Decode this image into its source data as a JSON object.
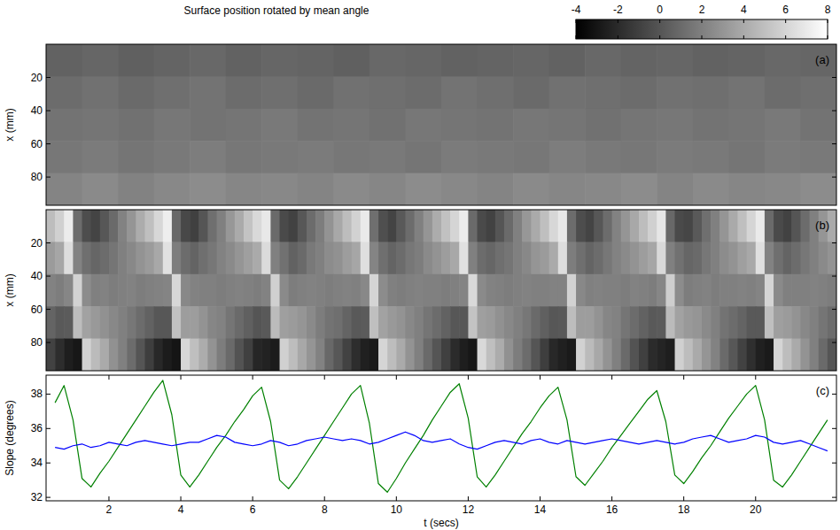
{
  "chart_data": [
    {
      "type": "heatmap",
      "title": "Surface position rotated by mean angle",
      "color_range": [
        -4,
        8
      ],
      "color_ticks": [
        -4,
        -2,
        0,
        2,
        4,
        6,
        8
      ],
      "annotation": "(a)",
      "y_label": "x (mm)",
      "xlim": [
        0.25,
        22.25
      ],
      "ylim": [
        0,
        97
      ],
      "yticks": [
        20,
        40,
        60,
        80
      ],
      "tick_labels": "y",
      "cells": [
        [
          0.6,
          0.8,
          0.5,
          0.7,
          0.9,
          0.6,
          0.8,
          0.7,
          0.5,
          0.9,
          0.8,
          0.6,
          0.7,
          0.8,
          0.6,
          0.9,
          0.7,
          0.8,
          0.6,
          0.7,
          0.9,
          0.8
        ],
        [
          1.1,
          1.3,
          1.0,
          1.2,
          1.4,
          1.1,
          1.2,
          1.0,
          1.3,
          1.2,
          1.1,
          1.4,
          1.2,
          1.0,
          1.3,
          1.2,
          1.1,
          1.3,
          1.2,
          1.4,
          1.1,
          1.2
        ],
        [
          1.4,
          1.5,
          1.3,
          1.6,
          1.4,
          1.5,
          1.7,
          1.4,
          1.5,
          1.3,
          1.6,
          1.5,
          1.4,
          1.6,
          1.5,
          1.3,
          1.5,
          1.6,
          1.4,
          1.5,
          1.7,
          1.4
        ],
        [
          1.6,
          1.8,
          1.5,
          1.7,
          1.9,
          1.6,
          1.7,
          1.8,
          1.6,
          1.7,
          1.5,
          1.8,
          1.7,
          1.6,
          1.9,
          1.7,
          1.6,
          1.8,
          1.7,
          1.5,
          1.8,
          1.7
        ],
        [
          2.2,
          2.5,
          2.1,
          2.4,
          2.6,
          2.3,
          2.4,
          2.2,
          2.5,
          2.3,
          2.6,
          2.4,
          2.2,
          2.5,
          2.3,
          2.4,
          2.6,
          2.2,
          2.5,
          2.3,
          2.4,
          2.6
        ]
      ]
    },
    {
      "type": "heatmap",
      "annotation": "(b)",
      "y_label": "x (mm)",
      "xlim": [
        0.25,
        22.25
      ],
      "ylim": [
        0,
        97
      ],
      "yticks": [
        20,
        40,
        60,
        80
      ],
      "tick_labels": "y",
      "cells": [
        [
          4.9,
          5.8,
          7.1,
          1.1,
          -0.4,
          -0.8,
          0.1,
          1.0,
          2.1,
          3.0,
          4.1,
          5.0,
          6.1,
          7.2,
          0.9,
          -0.6,
          -1.0,
          0.0,
          1.2,
          2.0,
          3.1,
          4.0,
          5.2,
          6.2,
          6.9,
          1.0,
          -0.5,
          -0.9,
          0.1,
          1.1,
          1.9,
          2.9,
          3.9,
          4.9,
          5.9,
          7.0,
          1.2,
          -0.3,
          -0.8,
          0.2,
          1.1,
          2.0,
          3.0,
          4.1,
          5.1,
          6.0,
          7.1,
          1.0,
          -0.5,
          -0.9,
          0.0,
          1.0,
          2.0,
          3.1,
          4.0,
          5.0,
          6.1,
          6.9,
          1.1,
          -0.4,
          -0.8,
          0.1,
          1.1,
          2.1,
          3.0,
          3.9,
          4.9,
          5.8,
          6.8,
          0.9,
          -0.5,
          -0.7,
          0.2,
          1.2,
          2.0,
          3.0,
          4.0,
          5.0,
          6.0,
          7.0,
          1.0,
          -0.5,
          -0.9,
          0.0,
          1.1,
          2.0,
          3.0,
          4.0
        ],
        [
          3.3,
          3.8,
          6.4,
          2.1,
          1.2,
          0.8,
          1.1,
          1.5,
          2.0,
          2.4,
          2.9,
          3.3,
          3.9,
          6.6,
          1.9,
          1.1,
          0.7,
          1.2,
          1.6,
          2.1,
          2.5,
          3.0,
          3.5,
          4.0,
          6.3,
          2.0,
          1.3,
          0.6,
          1.0,
          1.7,
          2.0,
          2.6,
          2.8,
          3.4,
          3.8,
          6.5,
          2.2,
          1.2,
          0.7,
          1.1,
          1.6,
          1.9,
          2.5,
          2.9,
          3.4,
          3.9,
          6.6,
          2.0,
          1.1,
          0.8,
          1.2,
          1.5,
          2.0,
          2.4,
          3.0,
          3.3,
          4.0,
          6.4,
          1.9,
          1.2,
          0.7,
          1.1,
          1.6,
          2.1,
          2.5,
          2.9,
          3.4,
          3.8,
          6.2,
          2.0,
          1.3,
          0.8,
          1.0,
          1.6,
          2.0,
          2.6,
          2.9,
          3.5,
          3.9,
          6.5,
          2.1,
          1.2,
          0.7,
          1.1,
          1.6,
          2.0,
          2.5,
          2.9
        ],
        [
          2.1,
          1.9,
          2.3,
          5.9,
          2.6,
          2.0,
          2.1,
          1.9,
          2.0,
          2.1,
          1.9,
          2.0,
          2.1,
          2.2,
          6.1,
          2.4,
          2.1,
          2.0,
          2.0,
          1.9,
          2.0,
          2.1,
          2.0,
          1.9,
          2.1,
          5.8,
          2.5,
          1.9,
          2.0,
          2.1,
          2.0,
          1.9,
          2.0,
          2.1,
          2.0,
          2.4,
          6.0,
          2.6,
          2.0,
          1.9,
          2.0,
          2.1,
          2.0,
          2.0,
          1.9,
          2.0,
          2.2,
          6.2,
          2.5,
          2.1,
          2.0,
          1.9,
          2.0,
          2.1,
          2.0,
          2.0,
          2.1,
          2.1,
          5.9,
          2.4,
          2.0,
          2.1,
          2.0,
          2.0,
          1.9,
          2.1,
          2.0,
          1.9,
          2.3,
          5.7,
          2.6,
          1.9,
          2.0,
          2.1,
          1.9,
          2.0,
          2.0,
          2.1,
          2.0,
          2.2,
          6.0,
          2.5,
          2.0,
          2.0,
          2.0,
          2.1,
          2.0,
          1.9
        ],
        [
          0.7,
          0.2,
          0.3,
          4.9,
          3.6,
          3.2,
          2.8,
          2.4,
          2.0,
          1.6,
          1.1,
          0.6,
          0.1,
          0.1,
          5.1,
          3.4,
          3.4,
          2.9,
          2.3,
          2.1,
          1.5,
          1.0,
          0.5,
          0.0,
          0.2,
          4.8,
          3.5,
          3.3,
          3.0,
          2.5,
          1.9,
          1.4,
          1.2,
          0.7,
          0.2,
          0.3,
          5.0,
          3.6,
          3.2,
          2.9,
          2.4,
          2.0,
          1.5,
          1.1,
          0.6,
          0.1,
          0.1,
          5.2,
          3.5,
          3.3,
          2.8,
          2.4,
          2.0,
          1.6,
          1.0,
          0.5,
          0.1,
          0.2,
          4.9,
          3.4,
          3.4,
          2.9,
          2.3,
          2.1,
          1.5,
          1.1,
          0.6,
          0.2,
          0.3,
          4.8,
          3.6,
          3.2,
          3.0,
          2.5,
          2.0,
          1.4,
          1.1,
          0.7,
          0.2,
          0.2,
          5.0,
          3.5,
          3.3,
          2.9,
          2.4,
          2.0,
          1.5,
          1.1
        ],
        [
          -0.9,
          -1.9,
          -2.6,
          -2.9,
          5.9,
          4.8,
          4.0,
          2.8,
          2.0,
          1.1,
          0.0,
          -1.1,
          -2.1,
          -2.7,
          -3.0,
          6.1,
          5.0,
          4.1,
          2.9,
          1.9,
          1.0,
          -0.1,
          -1.0,
          -2.2,
          -2.4,
          -2.7,
          5.8,
          4.9,
          3.9,
          3.0,
          2.1,
          0.9,
          0.1,
          -0.9,
          -1.9,
          -2.5,
          -2.8,
          6.0,
          4.9,
          4.0,
          2.9,
          2.0,
          1.0,
          0.0,
          -1.0,
          -2.0,
          -2.6,
          -2.9,
          6.2,
          5.0,
          4.1,
          2.8,
          1.9,
          1.1,
          0.0,
          -1.1,
          -2.1,
          -2.5,
          -2.8,
          5.9,
          4.8,
          3.9,
          2.9,
          2.0,
          1.0,
          -0.1,
          -1.0,
          -2.0,
          -2.3,
          -2.6,
          5.8,
          4.9,
          4.0,
          3.0,
          2.1,
          1.0,
          0.1,
          -0.9,
          -1.8,
          -2.5,
          -2.8,
          6.0,
          4.9,
          4.0,
          2.9,
          2.0,
          1.0,
          0.0
        ]
      ]
    },
    {
      "type": "line",
      "annotation": "(c)",
      "x_label": "t (secs)",
      "y_label": "Slope (degrees)",
      "xlim": [
        0.25,
        22.25
      ],
      "xticks": [
        2,
        4,
        6,
        8,
        10,
        12,
        14,
        16,
        18,
        20
      ],
      "ylim": [
        31.8,
        39.1
      ],
      "yticks": [
        32,
        34,
        36,
        38
      ],
      "x": [
        0.5,
        0.75,
        1,
        1.25,
        1.5,
        1.75,
        2,
        2.25,
        2.5,
        2.75,
        3,
        3.25,
        3.5,
        3.75,
        4,
        4.25,
        4.5,
        4.75,
        5,
        5.25,
        5.5,
        5.75,
        6,
        6.25,
        6.5,
        6.75,
        7,
        7.25,
        7.5,
        7.75,
        8,
        8.25,
        8.5,
        8.75,
        9,
        9.25,
        9.5,
        9.75,
        10,
        10.25,
        10.5,
        10.75,
        11,
        11.25,
        11.5,
        11.75,
        12,
        12.25,
        12.5,
        12.75,
        13,
        13.25,
        13.5,
        13.75,
        14,
        14.25,
        14.5,
        14.75,
        15,
        15.25,
        15.5,
        15.75,
        16,
        16.25,
        16.5,
        16.75,
        17,
        17.25,
        17.5,
        17.75,
        18,
        18.25,
        18.5,
        18.75,
        19,
        19.25,
        19.5,
        19.75,
        20,
        20.25,
        20.5,
        20.75,
        21,
        21.25,
        21.5,
        21.75,
        22
      ],
      "series": [
        {
          "color": "#008000",
          "values": [
            37.5,
            38.5,
            36.5,
            33.1,
            32.6,
            33.4,
            34.1,
            34.9,
            35.7,
            36.5,
            37.3,
            38.1,
            38.8,
            36.8,
            33.3,
            32.6,
            33.3,
            34.1,
            34.9,
            35.6,
            36.4,
            37.1,
            37.9,
            38.4,
            36.4,
            33.0,
            32.5,
            33.2,
            34.0,
            34.8,
            35.6,
            36.4,
            37.2,
            38.0,
            38.5,
            36.3,
            32.8,
            32.3,
            33.1,
            34.0,
            34.8,
            35.6,
            36.5,
            37.3,
            38.1,
            38.6,
            36.6,
            33.2,
            32.6,
            33.3,
            34.1,
            34.9,
            35.7,
            36.4,
            37.2,
            37.9,
            38.4,
            36.5,
            33.2,
            32.7,
            33.4,
            34.1,
            34.9,
            35.6,
            36.3,
            37.0,
            37.7,
            38.2,
            36.4,
            33.3,
            32.8,
            33.5,
            34.3,
            35.0,
            35.8,
            36.6,
            37.3,
            38.0,
            38.5,
            36.5,
            33.0,
            32.6,
            33.3,
            34.1,
            34.9,
            35.7,
            36.5
          ]
        },
        {
          "color": "#0000ff",
          "values": [
            34.9,
            34.8,
            35.0,
            35.1,
            34.9,
            35.0,
            35.2,
            35.1,
            35.0,
            35.2,
            35.3,
            35.2,
            35.1,
            35.0,
            35.1,
            35.2,
            35.2,
            35.4,
            35.6,
            35.5,
            35.2,
            35.1,
            35.0,
            35.1,
            35.3,
            35.2,
            35.0,
            35.1,
            35.3,
            35.4,
            35.5,
            35.4,
            35.3,
            35.4,
            35.3,
            35.1,
            35.2,
            35.4,
            35.6,
            35.8,
            35.6,
            35.3,
            35.2,
            35.3,
            35.4,
            35.1,
            34.9,
            34.8,
            35.0,
            35.2,
            35.3,
            35.2,
            35.1,
            35.3,
            35.4,
            35.2,
            35.1,
            35.3,
            35.2,
            35.1,
            35.2,
            35.3,
            35.4,
            35.3,
            35.2,
            35.1,
            35.2,
            35.3,
            35.2,
            35.1,
            35.2,
            35.4,
            35.5,
            35.6,
            35.4,
            35.2,
            35.3,
            35.4,
            35.6,
            35.5,
            35.2,
            35.1,
            35.2,
            35.3,
            35.1,
            34.9,
            34.7
          ]
        }
      ]
    }
  ]
}
